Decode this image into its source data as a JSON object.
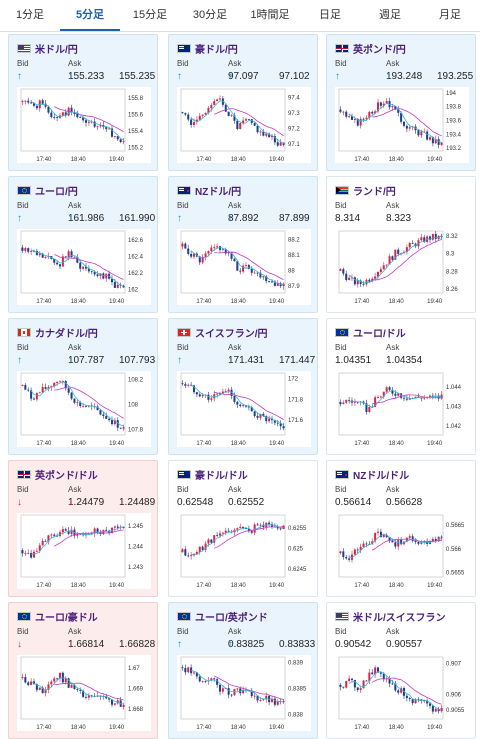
{
  "tabs": [
    {
      "label": "1分足",
      "active": false
    },
    {
      "label": "5分足",
      "active": true
    },
    {
      "label": "15分足",
      "active": false
    },
    {
      "label": "30分足",
      "active": false
    },
    {
      "label": "1時間足",
      "active": false
    },
    {
      "label": "日足",
      "active": false
    },
    {
      "label": "週足",
      "active": false
    },
    {
      "label": "月足",
      "active": false
    }
  ],
  "bid_label": "Bid",
  "ask_label": "Ask",
  "colors": {
    "up": "#d7264a",
    "down": "#1f3d8a",
    "ma": "#c03cc8",
    "ma2": "#39b4d6",
    "arrow_up": "#1a8fd1",
    "arrow_down": "#d7264a"
  },
  "cards": [
    {
      "pair": "米ドル/円",
      "flags": [
        "us",
        "jp"
      ],
      "bid": "155.233",
      "ask": "155.235",
      "dir": "up",
      "chart_data": {
        "type": "candlestick",
        "x_ticks": [
          "17:40",
          "18:40",
          "19:40"
        ],
        "y_ticks": [
          "155.8",
          "155.6",
          "155.4",
          "155.2"
        ],
        "ylim": [
          155.15,
          155.9
        ],
        "trend": [
          155.75,
          155.7,
          155.72,
          155.6,
          155.55,
          155.65,
          155.55,
          155.5,
          155.45,
          155.4,
          155.35,
          155.25
        ],
        "seed": 1
      }
    },
    {
      "pair": "豪ドル/円",
      "flags": [
        "au",
        "jp"
      ],
      "bid": "97.097",
      "ask": "97.102",
      "dir": "up",
      "chart_data": {
        "type": "candlestick",
        "x_ticks": [
          "17:40",
          "18:40",
          "19:40"
        ],
        "y_ticks": [
          "97.4",
          "97.3",
          "97.2",
          "97.1"
        ],
        "ylim": [
          97.05,
          97.45
        ],
        "trend": [
          97.3,
          97.22,
          97.28,
          97.35,
          97.38,
          97.3,
          97.2,
          97.25,
          97.2,
          97.15,
          97.12,
          97.08
        ],
        "seed": 2
      }
    },
    {
      "pair": "英ポンド/円",
      "flags": [
        "gb",
        "jp"
      ],
      "bid": "193.248",
      "ask": "193.255",
      "dir": "up",
      "chart_data": {
        "type": "candlestick",
        "x_ticks": [
          "17:40",
          "18:40",
          "19:40"
        ],
        "y_ticks": [
          "194",
          "193.8",
          "193.6",
          "193.4",
          "193.2"
        ],
        "ylim": [
          193.15,
          194.05
        ],
        "trend": [
          193.75,
          193.6,
          193.55,
          193.7,
          193.8,
          193.9,
          193.7,
          193.55,
          193.45,
          193.4,
          193.3,
          193.25
        ],
        "seed": 3
      }
    },
    {
      "pair": "ユーロ/円",
      "flags": [
        "eu",
        "jp"
      ],
      "bid": "161.986",
      "ask": "161.990",
      "dir": "up",
      "chart_data": {
        "type": "candlestick",
        "x_ticks": [
          "17:40",
          "18:40",
          "19:40"
        ],
        "y_ticks": [
          "162.6",
          "162.4",
          "162.2",
          "162"
        ],
        "ylim": [
          161.95,
          162.7
        ],
        "trend": [
          162.5,
          162.45,
          162.4,
          162.35,
          162.3,
          162.45,
          162.3,
          162.25,
          162.2,
          162.15,
          162.05,
          162.0
        ],
        "seed": 4
      }
    },
    {
      "pair": "NZドル/円",
      "flags": [
        "nz",
        "jp"
      ],
      "bid": "87.892",
      "ask": "87.899",
      "dir": "up",
      "chart_data": {
        "type": "candlestick",
        "x_ticks": [
          "17:40",
          "18:40",
          "19:40"
        ],
        "y_ticks": [
          "88.2",
          "88.1",
          "88",
          "87.9"
        ],
        "ylim": [
          87.85,
          88.25
        ],
        "trend": [
          88.15,
          88.1,
          88.05,
          88.12,
          88.15,
          88.1,
          88.0,
          88.02,
          87.98,
          87.95,
          87.92,
          87.9
        ],
        "seed": 5
      }
    },
    {
      "pair": "ランド/円",
      "flags": [
        "za",
        "jp"
      ],
      "bid": "8.314",
      "ask": "8.323",
      "dir": "flat",
      "chart_data": {
        "type": "candlestick",
        "x_ticks": [
          "17:40",
          "18:40",
          "19:40"
        ],
        "y_ticks": [
          "8.32",
          "8.3",
          "8.28",
          "8.26"
        ],
        "ylim": [
          8.255,
          8.325
        ],
        "trend": [
          8.28,
          8.27,
          8.265,
          8.27,
          8.28,
          8.29,
          8.3,
          8.305,
          8.31,
          8.315,
          8.318,
          8.317
        ],
        "seed": 6
      }
    },
    {
      "pair": "カナダドル/円",
      "flags": [
        "ca",
        "jp"
      ],
      "bid": "107.787",
      "ask": "107.793",
      "dir": "up",
      "chart_data": {
        "type": "candlestick",
        "x_ticks": [
          "17:40",
          "18:40",
          "19:40"
        ],
        "y_ticks": [
          "108.2",
          "108",
          "107.8"
        ],
        "ylim": [
          107.75,
          108.25
        ],
        "trend": [
          108.15,
          108.05,
          108.1,
          108.15,
          108.2,
          108.1,
          108.0,
          107.98,
          107.95,
          107.9,
          107.85,
          107.8
        ],
        "seed": 7
      }
    },
    {
      "pair": "スイスフラン/円",
      "flags": [
        "ch",
        "jp"
      ],
      "bid": "171.431",
      "ask": "171.447",
      "dir": "up",
      "chart_data": {
        "type": "candlestick",
        "x_ticks": [
          "17:40",
          "18:40",
          "19:40"
        ],
        "y_ticks": [
          "172",
          "171.8",
          "171.6"
        ],
        "ylim": [
          171.45,
          172.05
        ],
        "trend": [
          171.95,
          171.9,
          171.85,
          171.8,
          171.85,
          171.88,
          171.75,
          171.7,
          171.65,
          171.6,
          171.55,
          171.5
        ],
        "seed": 8
      }
    },
    {
      "pair": "ユーロ/ドル",
      "flags": [
        "eu",
        "us"
      ],
      "bid": "1.04351",
      "ask": "1.04354",
      "dir": "flat",
      "chart_data": {
        "type": "candlestick",
        "x_ticks": [
          "17:40",
          "18:40",
          "19:40"
        ],
        "y_ticks": [
          "1.044",
          "1.043",
          "1.042"
        ],
        "ylim": [
          1.0415,
          1.0447
        ],
        "trend": [
          1.0432,
          1.0433,
          1.0431,
          1.0428,
          1.0434,
          1.0438,
          1.0437,
          1.0435,
          1.0434,
          1.0435,
          1.0434,
          1.0435
        ],
        "seed": 9
      }
    },
    {
      "pair": "英ポンド/ドル",
      "flags": [
        "gb",
        "us"
      ],
      "bid": "1.24479",
      "ask": "1.24489",
      "dir": "down",
      "chart_data": {
        "type": "candlestick",
        "x_ticks": [
          "17:40",
          "18:40",
          "19:40"
        ],
        "y_ticks": [
          "1.245",
          "1.244",
          "1.243"
        ],
        "ylim": [
          1.2425,
          1.2455
        ],
        "trend": [
          1.2438,
          1.2436,
          1.2442,
          1.2444,
          1.2446,
          1.2447,
          1.2445,
          1.2446,
          1.2448,
          1.2447,
          1.2449,
          1.2448
        ],
        "seed": 10
      }
    },
    {
      "pair": "豪ドル/ドル",
      "flags": [
        "au",
        "us"
      ],
      "bid": "0.62548",
      "ask": "0.62552",
      "dir": "flat",
      "chart_data": {
        "type": "candlestick",
        "x_ticks": [
          "17:40",
          "18:40",
          "19:40"
        ],
        "y_ticks": [
          "0.6255",
          "0.625",
          "0.6245"
        ],
        "ylim": [
          0.6243,
          0.6258
        ],
        "trend": [
          0.6249,
          0.6248,
          0.625,
          0.6252,
          0.6253,
          0.6254,
          0.6255,
          0.6254,
          0.6255,
          0.6256,
          0.6255,
          0.6255
        ],
        "seed": 11
      }
    },
    {
      "pair": "NZドル/ドル",
      "flags": [
        "nz",
        "us"
      ],
      "bid": "0.56614",
      "ask": "0.56628",
      "dir": "flat",
      "chart_data": {
        "type": "candlestick",
        "x_ticks": [
          "17:40",
          "18:40",
          "19:40"
        ],
        "y_ticks": [
          "0.5665",
          "0.566",
          "0.5655"
        ],
        "ylim": [
          0.5654,
          0.5667
        ],
        "trend": [
          0.5659,
          0.5658,
          0.566,
          0.5661,
          0.5663,
          0.5662,
          0.5661,
          0.5662,
          0.5662,
          0.5661,
          0.5662,
          0.5662
        ],
        "seed": 12
      }
    },
    {
      "pair": "ユーロ/豪ドル",
      "flags": [
        "eu",
        "au"
      ],
      "bid": "1.66814",
      "ask": "1.66828",
      "dir": "down",
      "chart_data": {
        "type": "candlestick",
        "x_ticks": [
          "17:40",
          "18:40",
          "19:40"
        ],
        "y_ticks": [
          "1.67",
          "1.669",
          "1.668"
        ],
        "ylim": [
          1.6675,
          1.6705
        ],
        "trend": [
          1.6695,
          1.6692,
          1.6688,
          1.6693,
          1.6696,
          1.6692,
          1.6688,
          1.6685,
          1.6686,
          1.6684,
          1.6683,
          1.6681
        ],
        "seed": 13
      }
    },
    {
      "pair": "ユーロ/英ポンド",
      "flags": [
        "eu",
        "gb"
      ],
      "bid": "0.83825",
      "ask": "0.83833",
      "dir": "up",
      "chart_data": {
        "type": "candlestick",
        "x_ticks": [
          "17:40",
          "18:40",
          "19:40"
        ],
        "y_ticks": [
          "0.839",
          "0.8385",
          "0.838"
        ],
        "ylim": [
          0.8379,
          0.8391
        ],
        "trend": [
          0.8389,
          0.8388,
          0.8386,
          0.8387,
          0.8385,
          0.8384,
          0.8385,
          0.8384,
          0.8383,
          0.8383,
          0.8382,
          0.8382
        ],
        "seed": 14
      }
    },
    {
      "pair": "米ドル/スイスフラン",
      "flags": [
        "us",
        "ch"
      ],
      "bid": "0.90542",
      "ask": "0.90557",
      "dir": "flat",
      "chart_data": {
        "type": "candlestick",
        "x_ticks": [
          "17:40",
          "18:40",
          "19:40"
        ],
        "y_ticks": [
          "0.907",
          "0.906",
          "0.9055"
        ],
        "ylim": [
          0.9052,
          0.9072
        ],
        "trend": [
          0.9063,
          0.9064,
          0.9062,
          0.9066,
          0.9068,
          0.9065,
          0.9062,
          0.906,
          0.9058,
          0.9057,
          0.9055,
          0.9055
        ],
        "seed": 15
      }
    }
  ]
}
